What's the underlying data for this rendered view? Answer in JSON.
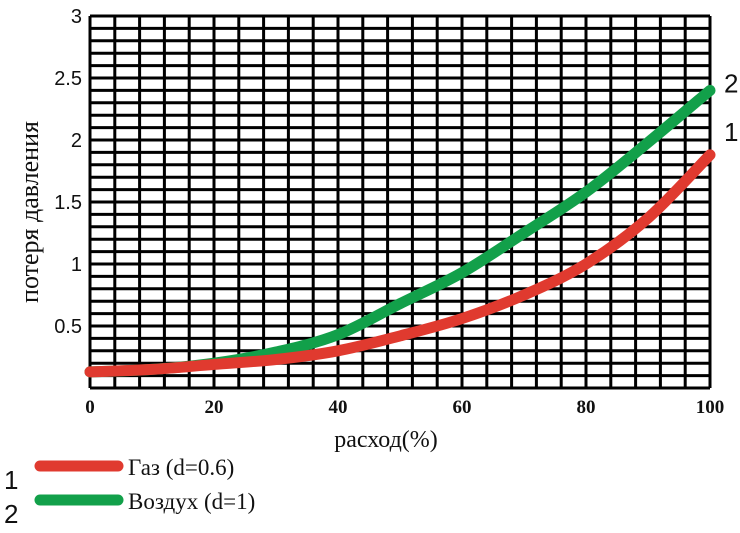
{
  "chart_data": {
    "type": "line",
    "title": "",
    "xlabel": "расход(%)",
    "ylabel": "потеря давления",
    "xlim": [
      0,
      100
    ],
    "ylim": [
      0,
      3
    ],
    "grid": true,
    "x_ticks": [
      "0",
      "20",
      "40",
      "60",
      "80",
      "100"
    ],
    "y_ticks": [
      "0.5",
      "1",
      "1.5",
      "2",
      "2.5",
      "3"
    ],
    "x": [
      0,
      10,
      20,
      30,
      40,
      50,
      60,
      70,
      80,
      90,
      100
    ],
    "series": [
      {
        "name": "Газ (d=0.6)",
        "number": "1",
        "color": "#e03a2f",
        "values": [
          0.13,
          0.15,
          0.19,
          0.23,
          0.3,
          0.42,
          0.56,
          0.75,
          1.0,
          1.37,
          1.88
        ]
      },
      {
        "name": "Воздух (d=1)",
        "number": "2",
        "color": "#12a04a",
        "values": [
          0.13,
          0.15,
          0.2,
          0.29,
          0.43,
          0.68,
          0.93,
          1.25,
          1.58,
          1.98,
          2.4
        ]
      }
    ]
  }
}
